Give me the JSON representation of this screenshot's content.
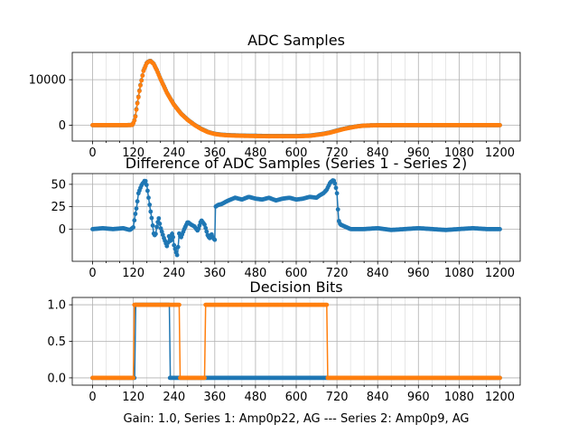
{
  "footer": "Gain: 1.0, Series 1: Amp0p22, AG --- Series 2: Amp0p9, AG",
  "colors": {
    "series1": "#1f77b4",
    "series2": "#ff7f0e",
    "grid": "#b0b0b0"
  },
  "chart_data": [
    {
      "type": "line",
      "title": "ADC Samples",
      "xlim": [
        -60,
        1260
      ],
      "ylim": [
        -3500,
        16000
      ],
      "xticks": [
        0,
        120,
        240,
        360,
        480,
        600,
        720,
        840,
        960,
        1080,
        1200
      ],
      "yticks": [
        0,
        10000
      ],
      "series": [
        {
          "name": "Series 1",
          "color": "#1f77b4",
          "x": [
            0,
            100,
            118,
            125,
            130,
            140,
            150,
            160,
            170,
            180,
            190,
            200,
            220,
            240,
            260,
            280,
            300,
            320,
            340,
            360,
            380,
            400,
            440,
            480,
            520,
            560,
            600,
            640,
            680,
            700,
            720,
            740,
            760,
            780,
            800,
            840,
            900,
            960,
            1020,
            1080,
            1140,
            1200
          ],
          "y": [
            0,
            0,
            50,
            1500,
            4000,
            8500,
            12000,
            13800,
            14200,
            13500,
            12000,
            10200,
            7000,
            4500,
            2600,
            1200,
            100,
            -800,
            -1500,
            -1900,
            -2100,
            -2200,
            -2300,
            -2350,
            -2400,
            -2400,
            -2400,
            -2300,
            -1900,
            -1600,
            -1200,
            -800,
            -500,
            -250,
            -100,
            -20,
            0,
            0,
            0,
            0,
            0,
            0
          ]
        },
        {
          "name": "Series 2",
          "color": "#ff7f0e",
          "x": [
            0,
            100,
            118,
            125,
            130,
            140,
            150,
            160,
            170,
            180,
            190,
            200,
            220,
            240,
            260,
            280,
            300,
            320,
            340,
            360,
            380,
            400,
            440,
            480,
            520,
            560,
            600,
            640,
            680,
            700,
            720,
            740,
            760,
            780,
            800,
            840,
            900,
            960,
            1020,
            1080,
            1140,
            1200
          ],
          "y": [
            0,
            0,
            50,
            1400,
            3900,
            8400,
            11950,
            13750,
            14150,
            13450,
            11950,
            10150,
            6950,
            4450,
            2550,
            1150,
            50,
            -850,
            -1550,
            -1950,
            -2150,
            -2250,
            -2350,
            -2400,
            -2450,
            -2450,
            -2450,
            -2350,
            -1950,
            -1650,
            -1250,
            -850,
            -550,
            -270,
            -110,
            -20,
            0,
            0,
            0,
            0,
            0,
            0
          ]
        }
      ]
    },
    {
      "type": "line",
      "title": "Difference of ADC Samples (Series 1 - Series 2)",
      "xlim": [
        -60,
        1260
      ],
      "ylim": [
        -36,
        62
      ],
      "xticks": [
        0,
        120,
        240,
        360,
        480,
        600,
        720,
        840,
        960,
        1080,
        1200
      ],
      "yticks": [
        0,
        25,
        50
      ],
      "series": [
        {
          "name": "Difference",
          "color": "#1f77b4",
          "x": [
            0,
            30,
            60,
            90,
            110,
            120,
            125,
            130,
            135,
            140,
            145,
            150,
            155,
            160,
            165,
            170,
            175,
            180,
            185,
            190,
            195,
            200,
            210,
            220,
            225,
            230,
            235,
            240,
            245,
            250,
            255,
            260,
            270,
            280,
            290,
            300,
            310,
            320,
            330,
            340,
            345,
            350,
            355,
            360,
            362,
            370,
            380,
            400,
            420,
            440,
            460,
            480,
            500,
            520,
            540,
            560,
            580,
            600,
            620,
            640,
            660,
            670,
            680,
            690,
            700,
            710,
            715,
            720,
            725,
            730,
            760,
            800,
            840,
            880,
            920,
            960,
            1000,
            1040,
            1080,
            1120,
            1160,
            1200
          ],
          "y": [
            0,
            1,
            0,
            1,
            -1,
            2,
            15,
            25,
            40,
            45,
            50,
            52,
            55,
            48,
            35,
            22,
            10,
            -5,
            -8,
            5,
            12,
            2,
            -10,
            -20,
            -8,
            -15,
            -3,
            -18,
            -25,
            -30,
            -5,
            -10,
            0,
            8,
            5,
            3,
            -2,
            10,
            5,
            -8,
            -10,
            -5,
            -10,
            -12,
            25,
            27,
            28,
            32,
            35,
            33,
            36,
            34,
            33,
            35,
            32,
            34,
            35,
            33,
            34,
            36,
            35,
            38,
            40,
            44,
            52,
            55,
            50,
            40,
            10,
            5,
            0,
            0,
            1,
            -1,
            0,
            1,
            0,
            -1,
            0,
            1,
            0,
            0
          ]
        }
      ]
    },
    {
      "type": "line",
      "title": "Decision Bits",
      "xlim": [
        -60,
        1260
      ],
      "ylim": [
        -0.1,
        1.1
      ],
      "xticks": [
        0,
        120,
        240,
        360,
        480,
        600,
        720,
        840,
        960,
        1080,
        1200
      ],
      "yticks": [
        0.0,
        0.5,
        1.0
      ],
      "series": [
        {
          "name": "Series 1",
          "color": "#1f77b4",
          "x": [
            0,
            124,
            127,
            226,
            229,
            1200
          ],
          "y": [
            0,
            0,
            1,
            1,
            0,
            0
          ]
        },
        {
          "name": "Series 2",
          "color": "#ff7f0e",
          "x": [
            0,
            120,
            123,
            255,
            258,
            330,
            333,
            690,
            693,
            1200
          ],
          "y": [
            0,
            0,
            1,
            1,
            0,
            0,
            1,
            1,
            0,
            0
          ]
        }
      ]
    }
  ]
}
